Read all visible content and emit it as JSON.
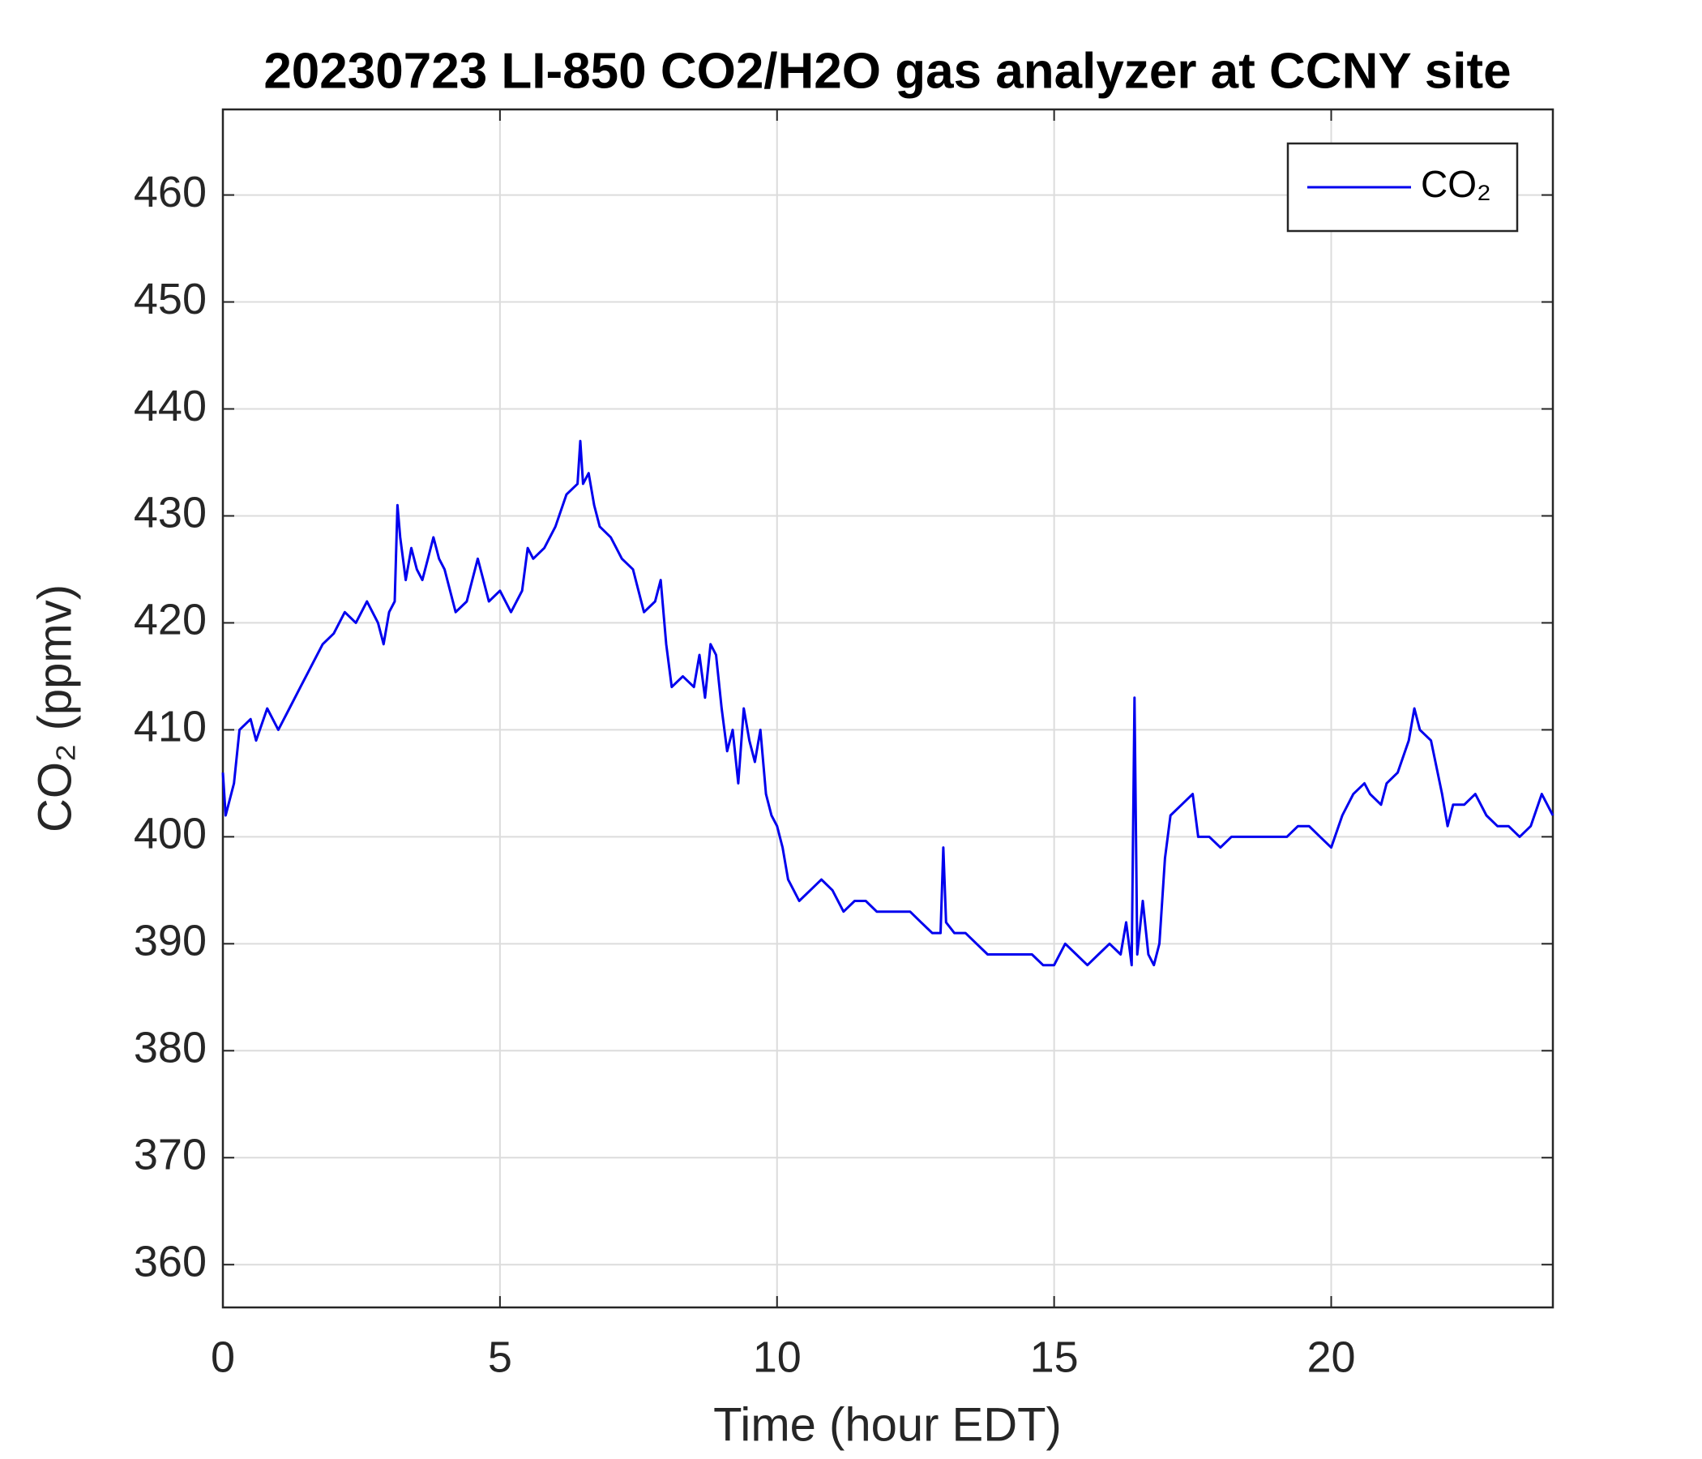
{
  "chart_data": {
    "type": "line",
    "title": "20230723 LI-850 CO2/H2O gas analyzer at CCNY site",
    "x_label": "Time (hour EDT)",
    "y_label": "CO₂ (ppmv)",
    "xlim": [
      0,
      24
    ],
    "xticks": [
      0,
      5,
      10,
      15,
      20
    ],
    "ylim": [
      356,
      468
    ],
    "yticks": [
      360,
      370,
      380,
      390,
      400,
      410,
      420,
      430,
      440,
      450,
      460
    ],
    "grid": true,
    "legend": "upper right",
    "x": [
      0,
      0.05,
      0.2,
      0.3,
      0.5,
      0.6,
      0.8,
      1.0,
      1.2,
      1.4,
      1.6,
      1.8,
      2.0,
      2.2,
      2.4,
      2.6,
      2.8,
      2.9,
      3.0,
      3.1,
      3.15,
      3.2,
      3.3,
      3.4,
      3.5,
      3.6,
      3.7,
      3.8,
      3.9,
      4.0,
      4.2,
      4.4,
      4.6,
      4.7,
      4.8,
      5.0,
      5.2,
      5.4,
      5.5,
      5.6,
      5.8,
      6.0,
      6.2,
      6.4,
      6.45,
      6.5,
      6.6,
      6.7,
      6.8,
      7.0,
      7.2,
      7.4,
      7.6,
      7.8,
      7.9,
      8.0,
      8.1,
      8.3,
      8.5,
      8.6,
      8.7,
      8.8,
      8.9,
      9.0,
      9.1,
      9.2,
      9.3,
      9.4,
      9.5,
      9.6,
      9.7,
      9.8,
      9.9,
      10.0,
      10.1,
      10.2,
      10.3,
      10.4,
      10.6,
      10.8,
      11.0,
      11.2,
      11.4,
      11.6,
      11.8,
      12.0,
      12.2,
      12.4,
      12.6,
      12.8,
      12.95,
      13.0,
      13.05,
      13.2,
      13.4,
      13.6,
      13.8,
      14.0,
      14.2,
      14.4,
      14.6,
      14.8,
      15.0,
      15.2,
      15.4,
      15.6,
      15.8,
      16.0,
      16.2,
      16.3,
      16.4,
      16.45,
      16.5,
      16.6,
      16.7,
      16.8,
      16.9,
      17.0,
      17.1,
      17.3,
      17.5,
      17.6,
      17.8,
      18.0,
      18.2,
      18.4,
      18.6,
      18.8,
      19.0,
      19.2,
      19.4,
      19.6,
      19.8,
      20.0,
      20.2,
      20.4,
      20.6,
      20.7,
      20.9,
      21.0,
      21.2,
      21.4,
      21.5,
      21.6,
      21.8,
      22.0,
      22.1,
      22.2,
      22.4,
      22.6,
      22.8,
      23.0,
      23.2,
      23.4,
      23.6,
      23.8,
      24.0
    ],
    "series": [
      {
        "name": "CO₂",
        "color": "#0000ee",
        "values": [
          406,
          402,
          405,
          410,
          411,
          409,
          412,
          410,
          412,
          414,
          416,
          418,
          419,
          421,
          420,
          422,
          420,
          418,
          421,
          422,
          431,
          428,
          424,
          427,
          425,
          424,
          426,
          428,
          426,
          425,
          421,
          422,
          426,
          424,
          422,
          423,
          421,
          423,
          427,
          426,
          427,
          429,
          432,
          433,
          437,
          433,
          434,
          431,
          429,
          428,
          426,
          425,
          421,
          422,
          424,
          418,
          414,
          415,
          414,
          417,
          413,
          418,
          417,
          412,
          408,
          410,
          405,
          412,
          409,
          407,
          410,
          404,
          402,
          401,
          399,
          396,
          395,
          394,
          395,
          396,
          395,
          393,
          394,
          394,
          393,
          393,
          393,
          393,
          392,
          391,
          391,
          399,
          392,
          391,
          391,
          390,
          389,
          389,
          389,
          389,
          389,
          388,
          388,
          390,
          389,
          388,
          389,
          390,
          389,
          392,
          388,
          413,
          389,
          394,
          389,
          388,
          390,
          398,
          402,
          403,
          404,
          400,
          400,
          399,
          400,
          400,
          400,
          400,
          400,
          400,
          401,
          401,
          400,
          399,
          402,
          404,
          405,
          404,
          403,
          405,
          406,
          409,
          412,
          410,
          409,
          404,
          401,
          403,
          403,
          404,
          402,
          401,
          401,
          400,
          401,
          404,
          402
        ]
      }
    ]
  }
}
